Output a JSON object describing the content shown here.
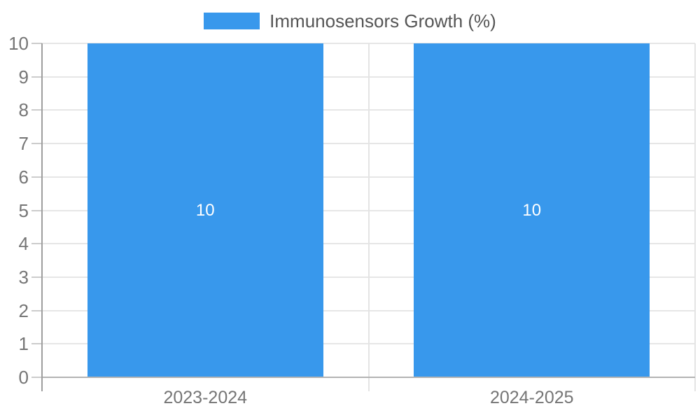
{
  "chart_data": {
    "type": "bar",
    "title": "",
    "legend": {
      "label": "Immunosensors Growth (%)",
      "position": "top-center",
      "swatch_color": "#3898ec"
    },
    "categories": [
      "2023-2024",
      "2024-2025"
    ],
    "series": [
      {
        "name": "Immunosensors Growth (%)",
        "color": "#3898ec",
        "values": [
          10,
          10
        ],
        "data_labels": [
          "10",
          "10"
        ]
      }
    ],
    "ylim": [
      0,
      10
    ],
    "yticks": [
      0,
      1,
      2,
      3,
      4,
      5,
      6,
      7,
      8,
      9,
      10
    ],
    "xlabel": "",
    "ylabel": "",
    "grid": true,
    "bar_width_fraction": 0.722,
    "data_label_color": "#ffffff"
  },
  "colors": {
    "bar": "#3898ec",
    "gridline": "#e6e6e6",
    "category_boundary_line": "#e4e4e4",
    "axis_line": "#9e9e9e",
    "baseline": "#b3b3b3",
    "tick_mark": "#cccccc",
    "tick_text": "#757575",
    "legend_text": "#555555",
    "data_label_text": "#ffffff",
    "background": "#ffffff"
  }
}
